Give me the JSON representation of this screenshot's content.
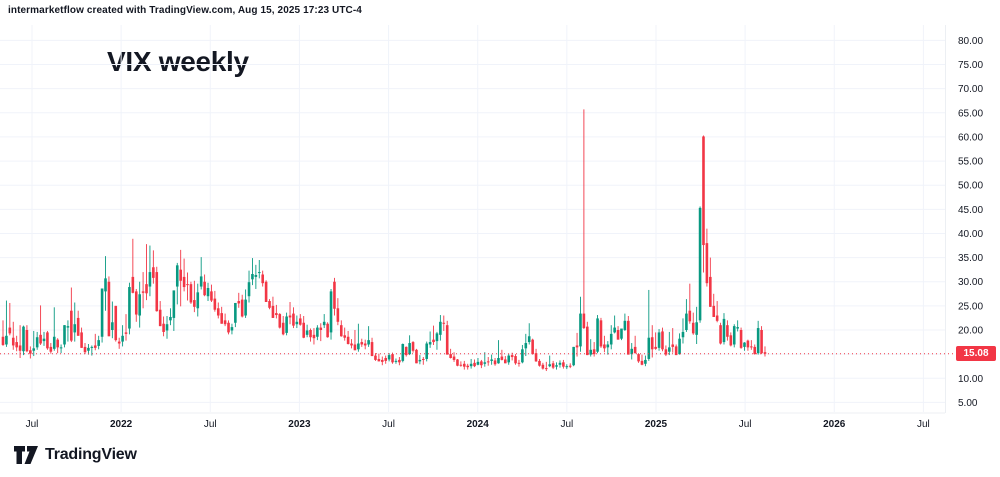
{
  "attribution": "intermarketflow created with TradingView.com, Aug 15, 2025 17:23 UTC-4",
  "title": "VIX weekly",
  "logo": {
    "text": "TradingView"
  },
  "price_axis": {
    "ticks": [
      "80.00",
      "75.00",
      "70.00",
      "65.00",
      "60.00",
      "55.00",
      "50.00",
      "45.00",
      "40.00",
      "35.00",
      "30.00",
      "25.00",
      "20.00",
      "15.00",
      "10.00",
      "5.00"
    ],
    "last_price_label": "15.08"
  },
  "time_axis": {
    "ticks": [
      {
        "label": "Jul",
        "strong": false
      },
      {
        "label": "2022",
        "strong": true
      },
      {
        "label": "Jul",
        "strong": false
      },
      {
        "label": "2023",
        "strong": true
      },
      {
        "label": "Jul",
        "strong": false
      },
      {
        "label": "2024",
        "strong": true
      },
      {
        "label": "Jul",
        "strong": false
      },
      {
        "label": "2025",
        "strong": true
      },
      {
        "label": "Jul",
        "strong": false
      },
      {
        "label": "2026",
        "strong": true
      },
      {
        "label": "Jul",
        "strong": false
      }
    ]
  },
  "chart_data": {
    "type": "candlestick",
    "symbol": "VIX",
    "timeframe": "weekly",
    "title": "VIX weekly",
    "start": "May 2021",
    "end": "Aug 2025",
    "last_price": 15.08,
    "ylim": [
      5,
      80
    ],
    "grid": true,
    "up_color": "#089981",
    "down_color": "#f23645",
    "last_price_color": "#f23645",
    "candles_ohlc": [
      [
        18.6,
        22.0,
        16.7,
        16.9
      ],
      [
        17.0,
        26.1,
        16.5,
        18.8
      ],
      [
        20.5,
        25.6,
        18.9,
        19.3
      ],
      [
        18.4,
        21.7,
        15.9,
        16.8
      ],
      [
        17.5,
        18.8,
        15.6,
        16.4
      ],
      [
        16.8,
        21.0,
        14.2,
        15.7
      ],
      [
        15.6,
        20.9,
        14.8,
        20.7
      ],
      [
        20.0,
        21.0,
        15.4,
        15.6
      ],
      [
        15.8,
        16.6,
        14.1,
        15.1
      ],
      [
        15.7,
        19.8,
        14.6,
        16.2
      ],
      [
        16.4,
        19.6,
        15.9,
        18.5
      ],
      [
        19.0,
        25.1,
        16.9,
        17.2
      ],
      [
        17.7,
        19.6,
        16.7,
        18.2
      ],
      [
        19.5,
        19.8,
        15.9,
        16.2
      ],
      [
        16.5,
        17.3,
        15.1,
        15.5
      ],
      [
        16.1,
        24.7,
        15.7,
        18.6
      ],
      [
        18.0,
        18.3,
        15.2,
        16.4
      ],
      [
        16.2,
        17.0,
        15.2,
        16.4
      ],
      [
        17.0,
        21.0,
        16.4,
        21.0
      ],
      [
        20.5,
        22.0,
        17.6,
        20.8
      ],
      [
        24.0,
        28.8,
        17.5,
        17.8
      ],
      [
        19.5,
        25.7,
        17.6,
        21.2
      ],
      [
        22.5,
        24.0,
        18.8,
        18.8
      ],
      [
        19.5,
        20.5,
        16.3,
        16.3
      ],
      [
        16.5,
        17.3,
        15.0,
        15.4
      ],
      [
        15.7,
        17.1,
        14.9,
        16.3
      ],
      [
        16.4,
        16.8,
        14.7,
        16.5
      ],
      [
        16.8,
        19.2,
        15.8,
        16.3
      ],
      [
        16.7,
        18.8,
        16.0,
        17.9
      ],
      [
        18.6,
        28.6,
        17.4,
        28.6
      ],
      [
        28.0,
        35.3,
        24.0,
        30.7
      ],
      [
        30.0,
        31.1,
        18.7,
        18.7
      ],
      [
        20.0,
        25.9,
        18.3,
        21.6
      ],
      [
        25.0,
        25.0,
        17.6,
        17.9
      ],
      [
        17.6,
        18.4,
        16.1,
        17.2
      ],
      [
        17.6,
        21.0,
        16.6,
        18.8
      ],
      [
        19.5,
        23.3,
        17.8,
        19.2
      ],
      [
        20.3,
        29.8,
        19.1,
        28.9
      ],
      [
        31.0,
        38.9,
        27.6,
        27.7
      ],
      [
        28.0,
        28.5,
        21.7,
        23.2
      ],
      [
        23.0,
        30.0,
        20.5,
        27.4
      ],
      [
        28.0,
        32.0,
        24.5,
        27.7
      ],
      [
        29.5,
        37.8,
        26.2,
        27.6
      ],
      [
        29.0,
        37.5,
        27.0,
        32.0
      ],
      [
        33.0,
        36.5,
        29.6,
        30.8
      ],
      [
        32.0,
        33.1,
        23.8,
        23.9
      ],
      [
        24.2,
        26.0,
        20.8,
        20.8
      ],
      [
        21.3,
        22.8,
        18.7,
        19.6
      ],
      [
        19.9,
        22.9,
        18.2,
        21.2
      ],
      [
        22.0,
        24.5,
        21.0,
        22.7
      ],
      [
        22.5,
        28.2,
        19.8,
        28.2
      ],
      [
        29.0,
        33.9,
        25.3,
        33.4
      ],
      [
        32.5,
        36.6,
        24.9,
        30.2
      ],
      [
        31.0,
        34.8,
        28.0,
        28.9
      ],
      [
        29.5,
        31.9,
        26.1,
        29.4
      ],
      [
        29.5,
        30.0,
        25.4,
        25.7
      ],
      [
        26.2,
        30.2,
        23.7,
        24.8
      ],
      [
        24.5,
        29.6,
        22.8,
        27.8
      ],
      [
        29.0,
        35.1,
        28.4,
        31.1
      ],
      [
        30.0,
        31.5,
        27.0,
        27.2
      ],
      [
        27.0,
        29.8,
        26.0,
        28.7
      ],
      [
        28.0,
        29.4,
        25.8,
        26.1
      ],
      [
        26.5,
        28.1,
        23.8,
        24.2
      ],
      [
        24.5,
        25.7,
        22.4,
        23.0
      ],
      [
        23.5,
        24.8,
        21.3,
        21.3
      ],
      [
        22.0,
        23.4,
        20.8,
        21.2
      ],
      [
        21.5,
        22.0,
        19.1,
        19.5
      ],
      [
        19.9,
        21.3,
        19.1,
        20.6
      ],
      [
        21.5,
        25.6,
        20.6,
        25.6
      ],
      [
        26.0,
        27.7,
        24.6,
        25.5
      ],
      [
        26.3,
        27.3,
        22.6,
        22.8
      ],
      [
        23.0,
        28.4,
        22.5,
        26.3
      ],
      [
        27.0,
        32.3,
        25.7,
        29.9
      ],
      [
        30.5,
        34.9,
        29.3,
        31.6
      ],
      [
        31.0,
        33.5,
        28.5,
        31.4
      ],
      [
        32.0,
        34.5,
        30.7,
        32.0
      ],
      [
        31.5,
        32.3,
        29.0,
        29.7
      ],
      [
        30.0,
        30.3,
        25.8,
        25.8
      ],
      [
        26.0,
        26.4,
        24.3,
        24.6
      ],
      [
        25.0,
        26.9,
        22.5,
        22.5
      ],
      [
        23.5,
        25.2,
        22.4,
        23.1
      ],
      [
        23.3,
        23.5,
        20.3,
        20.5
      ],
      [
        21.5,
        22.9,
        18.9,
        19.1
      ],
      [
        19.4,
        23.6,
        18.9,
        22.8
      ],
      [
        23.0,
        25.8,
        21.2,
        22.6
      ],
      [
        23.4,
        24.7,
        20.4,
        20.9
      ],
      [
        21.2,
        23.0,
        20.4,
        21.7
      ],
      [
        22.4,
        23.3,
        20.9,
        21.1
      ],
      [
        21.5,
        22.9,
        18.3,
        18.4
      ],
      [
        19.0,
        21.1,
        18.5,
        19.9
      ],
      [
        20.0,
        20.3,
        17.6,
        18.5
      ],
      [
        19.0,
        20.4,
        17.0,
        18.3
      ],
      [
        18.6,
        21.0,
        17.9,
        20.5
      ],
      [
        20.5,
        21.4,
        17.7,
        20.0
      ],
      [
        21.0,
        23.3,
        20.4,
        21.7
      ],
      [
        21.3,
        21.6,
        18.4,
        18.5
      ],
      [
        19.5,
        28.5,
        18.0,
        28.0
      ],
      [
        30.0,
        30.8,
        23.0,
        24.4
      ],
      [
        24.5,
        26.6,
        21.0,
        21.7
      ],
      [
        21.0,
        22.0,
        18.6,
        18.7
      ],
      [
        18.9,
        20.5,
        17.8,
        18.4
      ],
      [
        18.6,
        19.8,
        17.0,
        17.1
      ],
      [
        17.2,
        18.1,
        16.2,
        16.8
      ],
      [
        17.0,
        20.0,
        15.8,
        15.8
      ],
      [
        16.0,
        21.3,
        15.5,
        17.2
      ],
      [
        17.5,
        18.2,
        16.5,
        17.0
      ],
      [
        17.2,
        18.0,
        16.0,
        16.8
      ],
      [
        17.0,
        20.8,
        16.5,
        17.9
      ],
      [
        17.5,
        18.4,
        14.6,
        14.6
      ],
      [
        14.7,
        15.2,
        13.6,
        13.8
      ],
      [
        14.0,
        15.1,
        13.5,
        13.5
      ],
      [
        13.8,
        14.5,
        12.7,
        13.4
      ],
      [
        14.2,
        14.7,
        13.0,
        13.6
      ],
      [
        13.9,
        15.2,
        13.5,
        14.8
      ],
      [
        15.0,
        15.3,
        13.0,
        13.3
      ],
      [
        13.5,
        14.1,
        13.0,
        13.6
      ],
      [
        13.8,
        14.4,
        12.7,
        13.3
      ],
      [
        13.6,
        17.2,
        13.3,
        17.1
      ],
      [
        16.5,
        16.6,
        14.5,
        14.8
      ],
      [
        15.0,
        18.9,
        14.8,
        17.3
      ],
      [
        17.5,
        17.7,
        15.3,
        15.7
      ],
      [
        15.9,
        16.1,
        13.1,
        13.1
      ],
      [
        13.5,
        14.8,
        12.9,
        13.8
      ],
      [
        14.0,
        14.4,
        12.8,
        13.8
      ],
      [
        14.0,
        17.6,
        13.5,
        17.2
      ],
      [
        17.0,
        19.7,
        16.3,
        17.5
      ],
      [
        18.0,
        20.9,
        16.9,
        17.5
      ],
      [
        17.7,
        19.6,
        15.9,
        19.3
      ],
      [
        19.0,
        23.1,
        17.8,
        21.7
      ],
      [
        21.5,
        23.0,
        19.8,
        21.3
      ],
      [
        21.0,
        21.9,
        14.9,
        14.9
      ],
      [
        15.0,
        16.1,
        14.1,
        14.2
      ],
      [
        14.5,
        15.4,
        13.4,
        13.8
      ],
      [
        13.9,
        14.0,
        12.5,
        12.6
      ],
      [
        12.8,
        13.5,
        12.4,
        12.6
      ],
      [
        13.0,
        13.6,
        11.8,
        12.4
      ],
      [
        12.6,
        13.0,
        11.8,
        12.3
      ],
      [
        12.5,
        14.0,
        12.0,
        13.0
      ],
      [
        13.2,
        13.9,
        12.3,
        12.5
      ],
      [
        12.8,
        14.2,
        12.7,
        13.4
      ],
      [
        13.5,
        13.8,
        12.1,
        12.7
      ],
      [
        13.0,
        15.4,
        12.4,
        13.3
      ],
      [
        13.5,
        14.4,
        12.6,
        13.3
      ],
      [
        13.6,
        14.9,
        12.8,
        13.9
      ],
      [
        13.7,
        14.2,
        12.6,
        12.9
      ],
      [
        13.1,
        17.9,
        13.0,
        14.2
      ],
      [
        14.5,
        15.9,
        13.7,
        13.8
      ],
      [
        13.9,
        14.6,
        13.1,
        13.1
      ],
      [
        13.3,
        15.1,
        12.8,
        14.7
      ],
      [
        14.8,
        15.3,
        13.7,
        14.4
      ],
      [
        14.6,
        15.0,
        12.8,
        13.1
      ],
      [
        13.2,
        13.8,
        12.4,
        13.0
      ],
      [
        13.3,
        16.9,
        13.1,
        16.0
      ],
      [
        16.2,
        19.2,
        14.6,
        17.3
      ],
      [
        17.5,
        21.4,
        17.0,
        18.7
      ],
      [
        18.0,
        18.2,
        14.9,
        15.0
      ],
      [
        15.2,
        16.1,
        13.4,
        13.5
      ],
      [
        13.6,
        14.0,
        12.4,
        12.6
      ],
      [
        12.8,
        13.2,
        11.8,
        12.0
      ],
      [
        12.1,
        13.4,
        11.5,
        11.9
      ],
      [
        12.5,
        14.7,
        12.3,
        12.9
      ],
      [
        13.1,
        13.6,
        11.9,
        12.2
      ],
      [
        12.4,
        13.3,
        11.8,
        12.7
      ],
      [
        12.8,
        13.7,
        12.2,
        13.2
      ],
      [
        13.3,
        13.8,
        12.0,
        12.4
      ],
      [
        12.5,
        12.9,
        11.9,
        12.5
      ],
      [
        12.6,
        13.1,
        12.1,
        12.5
      ],
      [
        12.7,
        16.5,
        12.5,
        16.5
      ],
      [
        16.8,
        19.4,
        14.5,
        16.4
      ],
      [
        16.6,
        26.9,
        15.5,
        23.4
      ],
      [
        23.4,
        65.7,
        20.2,
        20.4
      ],
      [
        20.7,
        21.7,
        14.8,
        14.8
      ],
      [
        14.9,
        18.1,
        14.5,
        15.9
      ],
      [
        16.0,
        17.5,
        14.5,
        15.0
      ],
      [
        15.5,
        23.1,
        15.2,
        22.4
      ],
      [
        22.0,
        22.5,
        16.3,
        16.6
      ],
      [
        17.0,
        18.8,
        15.4,
        16.2
      ],
      [
        16.4,
        17.7,
        14.9,
        17.0
      ],
      [
        17.0,
        21.0,
        16.0,
        19.2
      ],
      [
        19.5,
        23.0,
        19.3,
        20.5
      ],
      [
        20.0,
        20.8,
        18.0,
        18.0
      ],
      [
        18.2,
        20.2,
        17.9,
        20.3
      ],
      [
        20.0,
        23.4,
        19.8,
        21.9
      ],
      [
        21.9,
        22.9,
        14.9,
        14.9
      ],
      [
        15.0,
        17.3,
        13.9,
        16.1
      ],
      [
        16.5,
        18.8,
        15.1,
        15.2
      ],
      [
        15.0,
        15.2,
        13.2,
        13.5
      ],
      [
        13.6,
        14.9,
        12.7,
        12.8
      ],
      [
        13.0,
        14.7,
        12.5,
        13.8
      ],
      [
        14.0,
        28.3,
        13.6,
        18.4
      ],
      [
        18.5,
        21.0,
        14.3,
        16.0
      ],
      [
        16.5,
        19.5,
        15.9,
        16.1
      ],
      [
        16.3,
        20.2,
        15.7,
        19.5
      ],
      [
        19.7,
        20.5,
        15.6,
        16.0
      ],
      [
        16.0,
        16.8,
        14.6,
        14.9
      ],
      [
        15.5,
        19.6,
        14.8,
        16.4
      ],
      [
        17.0,
        20.4,
        15.3,
        16.5
      ],
      [
        16.6,
        17.0,
        14.8,
        14.8
      ],
      [
        15.0,
        19.3,
        14.9,
        18.2
      ],
      [
        18.5,
        22.4,
        17.2,
        19.6
      ],
      [
        20.0,
        26.4,
        19.6,
        23.4
      ],
      [
        24.0,
        29.6,
        21.3,
        21.8
      ],
      [
        21.5,
        23.6,
        19.0,
        19.3
      ],
      [
        19.0,
        24.8,
        17.1,
        21.6
      ],
      [
        22.0,
        45.6,
        21.5,
        45.3
      ],
      [
        60.1,
        60.3,
        31.9,
        37.6
      ],
      [
        38.0,
        41.0,
        29.0,
        29.7
      ],
      [
        31.0,
        35.0,
        24.8,
        24.8
      ],
      [
        25.0,
        27.5,
        22.7,
        22.7
      ],
      [
        23.0,
        26.0,
        21.6,
        21.9
      ],
      [
        21.0,
        21.5,
        17.0,
        17.2
      ],
      [
        17.5,
        23.5,
        17.0,
        22.3
      ],
      [
        21.0,
        22.0,
        17.8,
        18.6
      ],
      [
        18.9,
        19.5,
        16.6,
        16.8
      ],
      [
        17.0,
        21.2,
        16.4,
        20.8
      ],
      [
        20.3,
        22.0,
        19.7,
        20.6
      ],
      [
        20.0,
        20.5,
        16.1,
        16.3
      ],
      [
        16.5,
        17.5,
        15.7,
        17.4
      ],
      [
        17.8,
        18.0,
        15.7,
        16.4
      ],
      [
        16.6,
        17.9,
        15.9,
        16.4
      ],
      [
        16.5,
        17.0,
        14.9,
        15.0
      ],
      [
        15.2,
        21.9,
        14.9,
        20.4
      ],
      [
        20.0,
        20.8,
        15.0,
        15.2
      ],
      [
        15.4,
        16.6,
        14.5,
        15.08
      ]
    ]
  }
}
